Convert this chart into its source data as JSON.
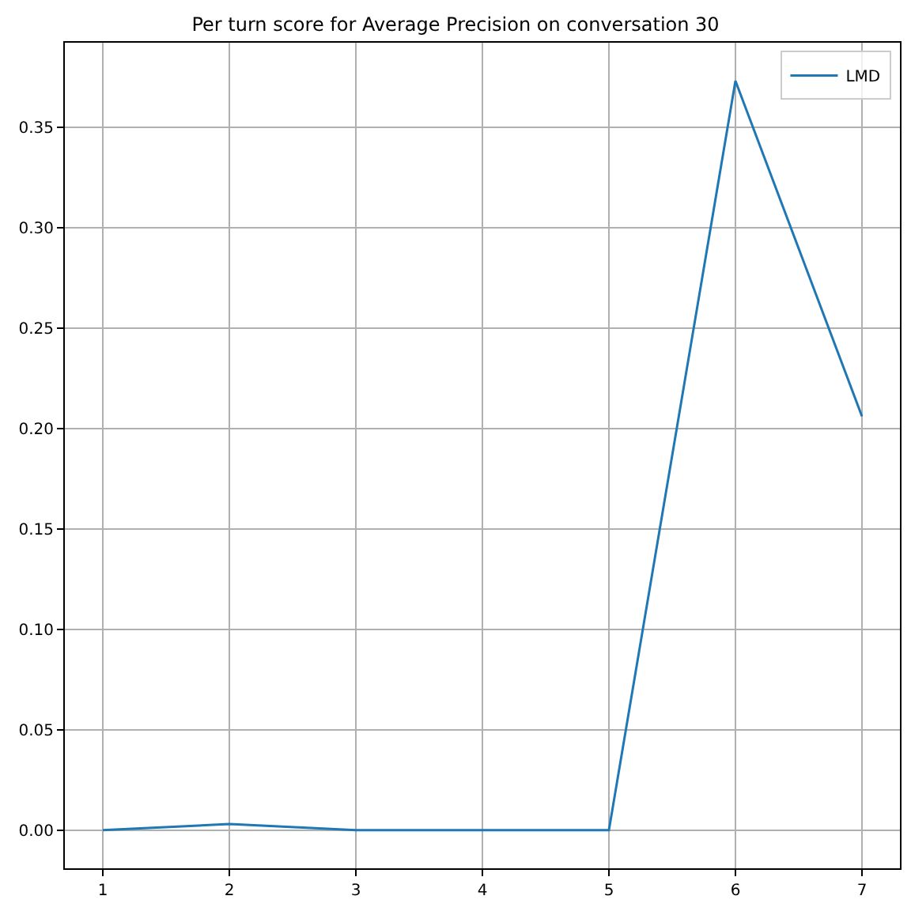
{
  "chart_data": {
    "type": "line",
    "title": "Per turn score for Average Precision on conversation 30",
    "x": [
      1,
      2,
      3,
      4,
      5,
      6,
      7
    ],
    "series": [
      {
        "name": "LMD",
        "color": "#1f77b4",
        "values": [
          0.0,
          0.003,
          0.0,
          0.0,
          0.0,
          0.373,
          0.206
        ]
      }
    ],
    "xlim": [
      0.7,
      7.3
    ],
    "xticks": [
      1,
      2,
      3,
      4,
      5,
      6,
      7
    ],
    "ylim": [
      -0.019,
      0.392
    ],
    "yticks": [
      {
        "value": 0,
        "label": "0.00"
      },
      {
        "value": 0.05,
        "label": "0.05"
      },
      {
        "value": 0.1,
        "label": "0.10"
      },
      {
        "value": 0.15,
        "label": "0.15"
      },
      {
        "value": 0.2,
        "label": "0.20"
      },
      {
        "value": 0.25,
        "label": "0.25"
      },
      {
        "value": 0.3,
        "label": "0.30"
      },
      {
        "value": 0.35,
        "label": "0.35"
      }
    ],
    "grid": true,
    "legend": "top right",
    "marker": "none",
    "line_style": "solid"
  }
}
